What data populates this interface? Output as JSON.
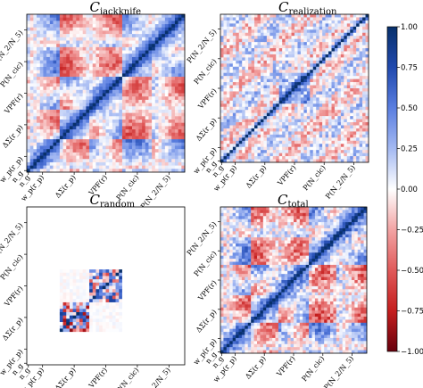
{
  "chart_data": [
    {
      "type": "heatmap",
      "title": "C",
      "title_subscript": "jackknife",
      "tick_labels": [
        "n_g",
        "w_p(r_p)",
        "ΔΣ(r_p)",
        "VPF(r)",
        "P(N_cic)",
        "P(N_2/N_5)"
      ],
      "pattern": "strong block-correlated structure across all statistics",
      "value_range": [
        -1,
        1
      ]
    },
    {
      "type": "heatmap",
      "title": "C",
      "title_subscript": "realization",
      "tick_labels": [
        "n_g",
        "w_p(r_p)",
        "ΔΣ(r_p)",
        "VPF(r)",
        "P(N_cic)",
        "P(N_2/N_5)"
      ],
      "pattern": "noisy, weak off-diagonal structure with strong diagonal",
      "value_range": [
        -1,
        1
      ]
    },
    {
      "type": "heatmap",
      "title": "C",
      "title_subscript": "random",
      "tick_labels": [
        "n_g",
        "w_p(r_p)",
        "ΔΣ(r_p)",
        "VPF(r)",
        "P(N_cic)",
        "P(N_2/N_5)"
      ],
      "pattern": "mostly zero; non-zero blocks only for ΔΣ(r_p) and VPF(r)",
      "value_range": [
        -1,
        1
      ]
    },
    {
      "type": "heatmap",
      "title": "C",
      "title_subscript": "total",
      "tick_labels": [
        "n_g",
        "w_p(r_p)",
        "ΔΣ(r_p)",
        "VPF(r)",
        "P(N_cic)",
        "P(N_2/N_5)"
      ],
      "pattern": "strong block-correlated structure across all statistics",
      "value_range": [
        -1,
        1
      ]
    }
  ],
  "colorbar": {
    "ticks": [
      "1.00",
      "0.75",
      "0.50",
      "0.25",
      "0.00",
      "−0.25",
      "−0.50",
      "−0.75",
      "−1.00"
    ],
    "min": -1,
    "max": 1,
    "colors": [
      "#08306b",
      "#2049ae",
      "#5a7ee0",
      "#a4b9f2",
      "#ffffff",
      "#f2a4a4",
      "#e05a5a",
      "#c41e1e",
      "#67000d"
    ]
  }
}
